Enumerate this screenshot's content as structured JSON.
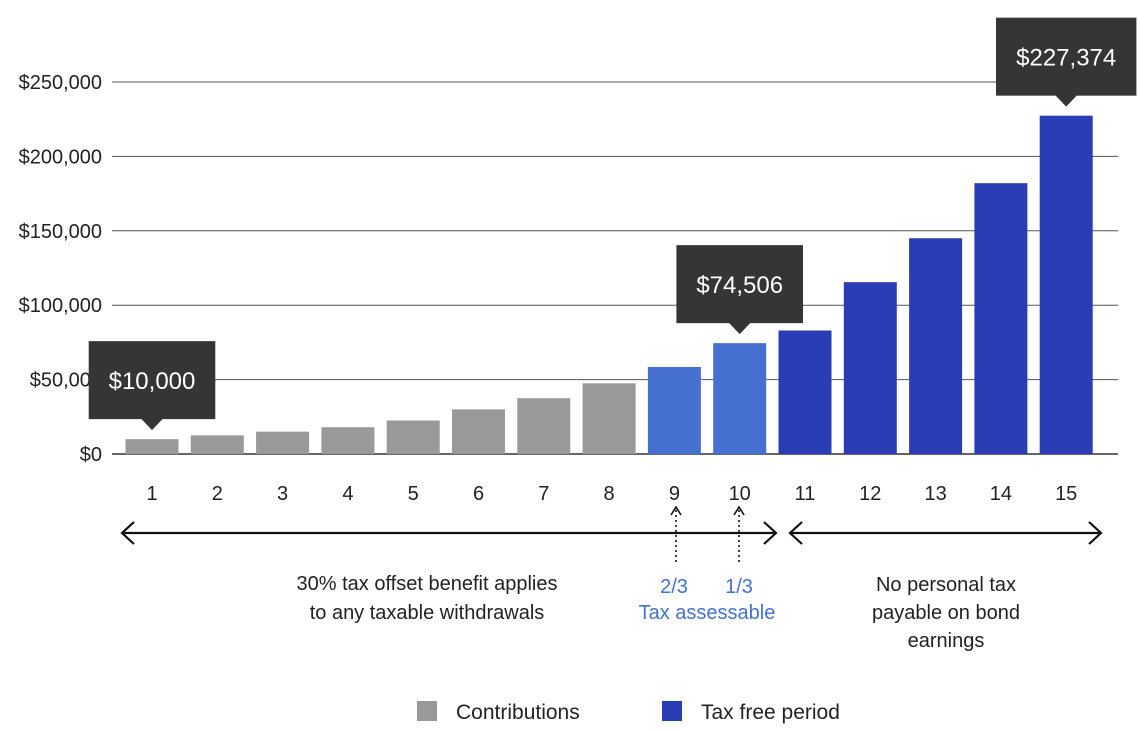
{
  "chart_data": {
    "type": "bar",
    "title": "",
    "xlabel": "",
    "ylabel": "",
    "ylim": [
      0,
      250000
    ],
    "yticks": [
      0,
      50000,
      100000,
      150000,
      200000,
      250000
    ],
    "ytick_labels": [
      "$0",
      "$50,000",
      "$100,000",
      "$150,000",
      "$200,000",
      "$250,000"
    ],
    "grid": true,
    "categories": [
      "1",
      "2",
      "3",
      "4",
      "5",
      "6",
      "7",
      "8",
      "9",
      "10",
      "11",
      "12",
      "13",
      "14",
      "15"
    ],
    "values": [
      10000,
      12500,
      15000,
      18000,
      22500,
      30000,
      37500,
      47500,
      58500,
      74506,
      83000,
      115500,
      145000,
      182000,
      227374
    ],
    "bar_groups": [
      "contributions",
      "contributions",
      "contributions",
      "contributions",
      "contributions",
      "contributions",
      "contributions",
      "contributions",
      "assessable",
      "assessable",
      "tax_free",
      "tax_free",
      "tax_free",
      "tax_free",
      "tax_free"
    ],
    "colors": {
      "contributions": "#999999",
      "assessable": "#4570d1",
      "tax_free": "#2b3db5",
      "callout": "#353535",
      "axis": "#333333",
      "annotation_blue": "#4570d1",
      "arrow": "#111111"
    },
    "legend": [
      {
        "name": "Contributions",
        "group": "contributions"
      },
      {
        "name": "Tax free period",
        "group": "tax_free"
      }
    ],
    "legend_position": "bottom",
    "callouts": [
      {
        "index": 0,
        "label": "$10,000"
      },
      {
        "index": 9,
        "label": "$74,506"
      },
      {
        "index": 14,
        "label": "$227,374"
      }
    ],
    "annotations": {
      "left_span": {
        "from": "1",
        "to": "10",
        "lines": [
          "30% tax offset benefit applies",
          "to any taxable withdrawals"
        ]
      },
      "middle": {
        "fractions": [
          {
            "at": "9",
            "label": "2/3"
          },
          {
            "at": "10",
            "label": "1/3"
          }
        ],
        "caption": "Tax assessable"
      },
      "right_span": {
        "from": "11",
        "to": "15",
        "lines": [
          "No personal tax",
          "payable on bond",
          "earnings"
        ]
      }
    }
  }
}
